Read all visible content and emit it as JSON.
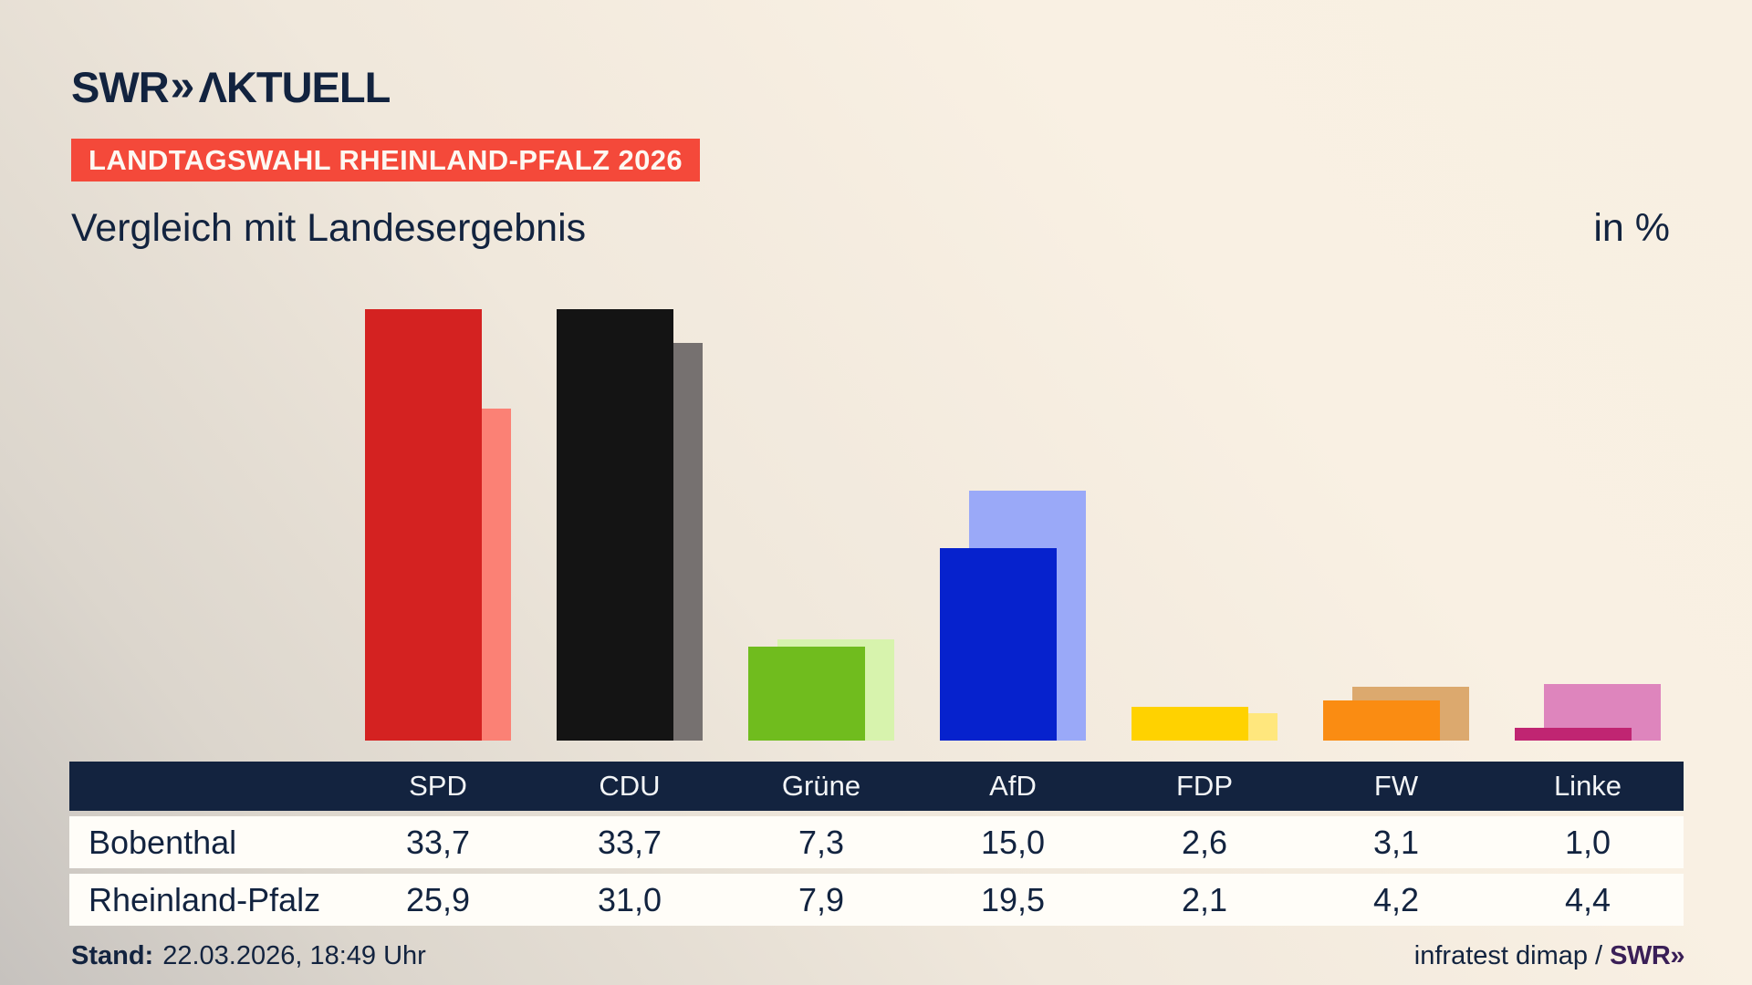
{
  "header": {
    "logo_swr": "SWR",
    "logo_chevrons": "»",
    "logo_aktuell": "ΛKTUELL",
    "banner": "LANDTAGSWAHL RHEINLAND-PFALZ 2026",
    "title": "Vergleich mit Landesergebnis",
    "unit_label": "in %"
  },
  "chart_data": {
    "type": "bar",
    "title": "Vergleich mit Landesergebnis",
    "unit": "in %",
    "categories": [
      "SPD",
      "CDU",
      "Grüne",
      "AfD",
      "FDP",
      "FW",
      "Linke"
    ],
    "series": [
      {
        "name": "Bobenthal",
        "values": [
          33.7,
          33.7,
          7.3,
          15.0,
          2.6,
          3.1,
          1.0
        ]
      },
      {
        "name": "Rheinland-Pfalz",
        "values": [
          25.9,
          31.0,
          7.9,
          19.5,
          2.1,
          4.2,
          4.4
        ]
      }
    ],
    "colors": {
      "main": [
        "#d42221",
        "#141414",
        "#70bc1e",
        "#0622cd",
        "#ffd200",
        "#fa8c12",
        "#c02572"
      ],
      "light": [
        "#fb8175",
        "#767170",
        "#d7f3ad",
        "#9aa9f8",
        "#ffe77d",
        "#dca96e",
        "#de85bd"
      ]
    },
    "ylim": [
      0,
      40
    ],
    "grid": false,
    "legend_position": "table-below",
    "value_format": "decimal-comma"
  },
  "table": {
    "columns": [
      "SPD",
      "CDU",
      "Grüne",
      "AfD",
      "FDP",
      "FW",
      "Linke"
    ],
    "rows": [
      {
        "label": "Bobenthal",
        "values": [
          "33,7",
          "33,7",
          "7,3",
          "15,0",
          "2,6",
          "3,1",
          "1,0"
        ]
      },
      {
        "label": "Rheinland-Pfalz",
        "values": [
          "25,9",
          "31,0",
          "7,9",
          "19,5",
          "2,1",
          "4,2",
          "4,4"
        ]
      }
    ]
  },
  "footer": {
    "stand_label": "Stand:",
    "stand_value": "22.03.2026, 18:49 Uhr",
    "source_text": "infratest dimap / ",
    "source_logo_swr": "SWR",
    "source_logo_chevrons": "»"
  }
}
